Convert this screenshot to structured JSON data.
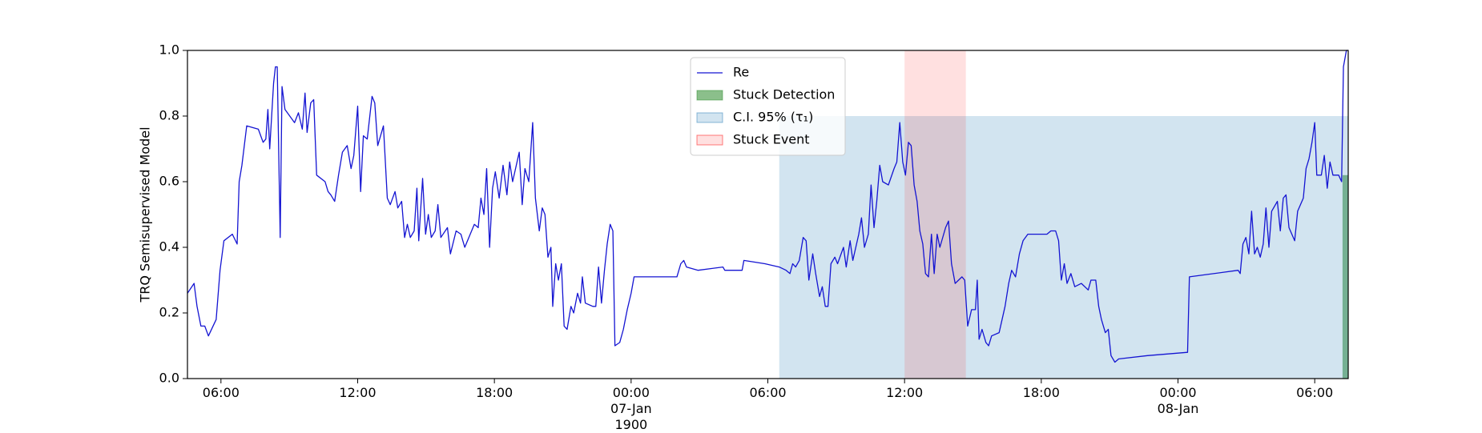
{
  "chart_data": {
    "type": "line",
    "y_label": "TRQ Semisupervised Model",
    "xlim": [
      -19.47,
      31.47
    ],
    "xticks": [
      {
        "value": -18,
        "label": "06:00"
      },
      {
        "value": -12,
        "label": "12:00"
      },
      {
        "value": -6,
        "label": "18:00"
      },
      {
        "value": 0,
        "label": "00:00\n07-Jan\n1900"
      },
      {
        "value": 6,
        "label": "06:00"
      },
      {
        "value": 12,
        "label": "12:00"
      },
      {
        "value": 18,
        "label": "18:00"
      },
      {
        "value": 24,
        "label": "00:00\n08-Jan"
      },
      {
        "value": 30,
        "label": "06:00"
      }
    ],
    "ylim": [
      0,
      1
    ],
    "yticks": [
      {
        "value": 0,
        "label": "0.0"
      },
      0.2,
      0.4,
      0.6,
      0.8,
      {
        "value": 1,
        "label": "1.0"
      }
    ],
    "legend": "upper center",
    "x": [
      -19.47,
      -19.18,
      -19.05,
      -18.88,
      -18.71,
      -18.55,
      -18.21,
      -18.04,
      -17.87,
      -17.5,
      -17.29,
      -17.2,
      -17.08,
      -16.87,
      -16.36,
      -16.15,
      -16.03,
      -15.94,
      -15.86,
      -15.69,
      -15.61,
      -15.53,
      -15.4,
      -15.32,
      -15.19,
      -14.77,
      -14.6,
      -14.43,
      -14.31,
      -14.22,
      -14.06,
      -13.93,
      -13.8,
      -13.43,
      -13.3,
      -13.18,
      -13.01,
      -12.84,
      -12.67,
      -12.46,
      -12.29,
      -12.17,
      -12,
      -11.87,
      -11.75,
      -11.58,
      -11.37,
      -11.25,
      -11.12,
      -10.87,
      -10.7,
      -10.57,
      -10.36,
      -10.24,
      -10.07,
      -9.94,
      -9.82,
      -9.69,
      -9.52,
      -9.4,
      -9.32,
      -9.15,
      -9.02,
      -8.9,
      -8.77,
      -8.6,
      -8.48,
      -8.35,
      -8.06,
      -7.93,
      -7.68,
      -7.47,
      -7.3,
      -6.88,
      -6.71,
      -6.59,
      -6.46,
      -6.34,
      -6.21,
      -6.08,
      -5.96,
      -5.79,
      -5.62,
      -5.45,
      -5.33,
      -5.2,
      -4.91,
      -4.78,
      -4.66,
      -4.49,
      -4.32,
      -4.2,
      -4.03,
      -3.9,
      -3.78,
      -3.65,
      -3.52,
      -3.44,
      -3.31,
      -3.19,
      -3.06,
      -2.94,
      -2.81,
      -2.64,
      -2.52,
      -2.35,
      -2.22,
      -2.14,
      -2.01,
      -1.68,
      -1.55,
      -1.43,
      -1.3,
      -1.17,
      -1.05,
      -0.92,
      -0.8,
      -0.71,
      -0.5,
      -0.34,
      -0.17,
      0,
      0.13,
      0.55,
      2.01,
      2.18,
      2.31,
      2.43,
      2.94,
      4.03,
      4.11,
      4.87,
      4.95,
      5.87,
      6.5,
      6.8,
      6.97,
      7.09,
      7.22,
      7.38,
      7.55,
      7.68,
      7.8,
      7.97,
      8.1,
      8.27,
      8.39,
      8.52,
      8.64,
      8.77,
      8.94,
      9.06,
      9.32,
      9.44,
      9.61,
      9.73,
      9.99,
      10.11,
      10.24,
      10.41,
      10.53,
      10.66,
      10.78,
      10.91,
      11.04,
      11.29,
      11.54,
      11.66,
      11.79,
      11.92,
      12.04,
      12.17,
      12.29,
      12.42,
      12.55,
      12.67,
      12.8,
      12.92,
      13.05,
      13.18,
      13.3,
      13.43,
      13.55,
      13.8,
      13.93,
      14.06,
      14.22,
      14.52,
      14.64,
      14.77,
      14.94,
      15.11,
      15.19,
      15.27,
      15.4,
      15.57,
      15.69,
      15.82,
      16.15,
      16.28,
      16.41,
      16.57,
      16.7,
      16.87,
      17.04,
      17.2,
      17.41,
      18.25,
      18.42,
      18.63,
      18.76,
      18.88,
      19.01,
      19.13,
      19.3,
      19.47,
      19.76,
      20.06,
      20.18,
      20.39,
      20.52,
      20.64,
      20.81,
      20.94,
      21.06,
      21.23,
      21.4,
      22.66,
      24.42,
      24.5,
      26.64,
      26.73,
      26.85,
      26.98,
      27.11,
      27.23,
      27.36,
      27.48,
      27.61,
      27.74,
      27.86,
      27.99,
      28.11,
      28.36,
      28.49,
      28.62,
      28.74,
      28.87,
      29.12,
      29.25,
      29.5,
      29.62,
      29.75,
      29.88,
      30,
      30.09,
      30.29,
      30.42,
      30.55,
      30.67,
      30.8,
      31.05,
      31.18,
      31.26,
      31.39,
      31.47
    ],
    "series": [
      {
        "name": "Re",
        "color": "#1414d2",
        "values": [
          0.26,
          0.29,
          0.22,
          0.16,
          0.16,
          0.13,
          0.18,
          0.33,
          0.42,
          0.44,
          0.41,
          0.6,
          0.65,
          0.77,
          0.76,
          0.72,
          0.73,
          0.82,
          0.7,
          0.9,
          0.95,
          0.95,
          0.43,
          0.89,
          0.82,
          0.78,
          0.81,
          0.76,
          0.87,
          0.75,
          0.84,
          0.85,
          0.62,
          0.6,
          0.57,
          0.56,
          0.54,
          0.62,
          0.69,
          0.71,
          0.64,
          0.68,
          0.83,
          0.57,
          0.74,
          0.73,
          0.86,
          0.84,
          0.71,
          0.77,
          0.55,
          0.53,
          0.57,
          0.52,
          0.54,
          0.43,
          0.47,
          0.43,
          0.45,
          0.58,
          0.42,
          0.61,
          0.44,
          0.5,
          0.43,
          0.45,
          0.53,
          0.43,
          0.46,
          0.38,
          0.45,
          0.44,
          0.4,
          0.47,
          0.46,
          0.55,
          0.5,
          0.64,
          0.4,
          0.58,
          0.63,
          0.55,
          0.65,
          0.56,
          0.66,
          0.6,
          0.69,
          0.53,
          0.64,
          0.6,
          0.78,
          0.55,
          0.45,
          0.52,
          0.5,
          0.37,
          0.4,
          0.22,
          0.35,
          0.3,
          0.35,
          0.16,
          0.15,
          0.22,
          0.2,
          0.26,
          0.23,
          0.31,
          0.23,
          0.22,
          0.22,
          0.34,
          0.23,
          0.33,
          0.41,
          0.47,
          0.45,
          0.1,
          0.11,
          0.15,
          0.21,
          0.26,
          0.31,
          0.31,
          0.31,
          0.35,
          0.36,
          0.34,
          0.33,
          0.34,
          0.33,
          0.33,
          0.36,
          0.35,
          0.34,
          0.33,
          0.32,
          0.35,
          0.34,
          0.36,
          0.43,
          0.42,
          0.3,
          0.38,
          0.32,
          0.25,
          0.28,
          0.22,
          0.22,
          0.35,
          0.37,
          0.35,
          0.4,
          0.34,
          0.42,
          0.36,
          0.44,
          0.49,
          0.4,
          0.44,
          0.59,
          0.46,
          0.54,
          0.65,
          0.6,
          0.59,
          0.64,
          0.66,
          0.78,
          0.66,
          0.62,
          0.72,
          0.71,
          0.59,
          0.54,
          0.45,
          0.41,
          0.32,
          0.31,
          0.44,
          0.32,
          0.44,
          0.4,
          0.46,
          0.48,
          0.35,
          0.29,
          0.31,
          0.3,
          0.16,
          0.21,
          0.21,
          0.3,
          0.12,
          0.15,
          0.11,
          0.1,
          0.13,
          0.14,
          0.18,
          0.22,
          0.29,
          0.33,
          0.31,
          0.38,
          0.42,
          0.44,
          0.44,
          0.45,
          0.45,
          0.42,
          0.3,
          0.35,
          0.29,
          0.32,
          0.28,
          0.29,
          0.27,
          0.3,
          0.3,
          0.22,
          0.18,
          0.14,
          0.15,
          0.07,
          0.05,
          0.06,
          0.07,
          0.08,
          0.31,
          0.33,
          0.32,
          0.41,
          0.43,
          0.38,
          0.51,
          0.38,
          0.4,
          0.37,
          0.41,
          0.52,
          0.4,
          0.51,
          0.54,
          0.45,
          0.55,
          0.56,
          0.46,
          0.42,
          0.51,
          0.55,
          0.64,
          0.67,
          0.72,
          0.78,
          0.62,
          0.62,
          0.68,
          0.58,
          0.66,
          0.62,
          0.62,
          0.6,
          0.95,
          1,
          1
        ]
      }
    ],
    "spans": [
      {
        "name": "Stuck Detection",
        "color": "#2c8a2c",
        "alpha": 0.55,
        "x0": 31.22,
        "x1": 31.47,
        "y0": 0,
        "y1": 0.62
      },
      {
        "name": "C.I. 95% (τ₁)",
        "color": "#1f77b4",
        "alpha": 0.2,
        "x0": 6.5,
        "x1": 31.47,
        "y0": 0,
        "y1": 0.8
      },
      {
        "name": "Stuck Event",
        "color": "#ff0000",
        "alpha": 0.12,
        "x0": 12,
        "x1": 14.69,
        "y0": 0,
        "y1": 1
      }
    ]
  }
}
